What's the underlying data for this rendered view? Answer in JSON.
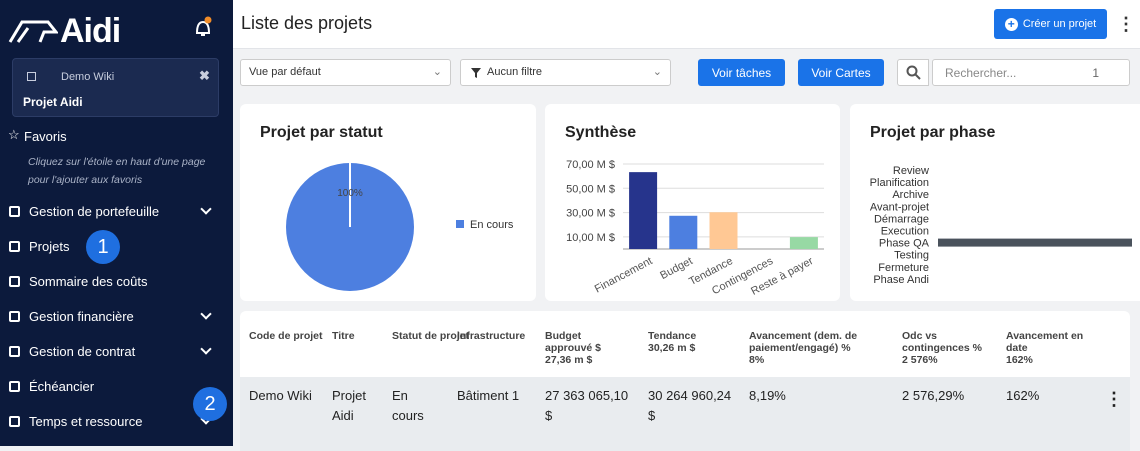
{
  "sidebar": {
    "logo": "Aidi",
    "project_card": {
      "workspace": "Demo Wiki",
      "project": "Projet Aidi"
    },
    "favorites": {
      "title": "Favoris",
      "hint": "Cliquez sur l'étoile en haut d'une page pour l'ajouter aux favoris"
    },
    "menu": [
      "Gestion de portefeuille",
      "Projets",
      "Sommaire des coûts",
      "Gestion financière",
      "Gestion de contrat",
      "Échéancier",
      "Temps et ressource"
    ]
  },
  "callouts": [
    1,
    2
  ],
  "header": {
    "title": "Liste des projets",
    "create_button": "Créer un projet"
  },
  "toolbar": {
    "view_select": "Vue par défaut",
    "filter_select": "Aucun filtre",
    "tasks_button": "Voir tâches",
    "cards_button": "Voir Cartes",
    "search_placeholder": "Rechercher...",
    "search_count": 1
  },
  "chart_data": [
    {
      "type": "pie",
      "title": "Projet par statut",
      "categories": [
        "En cours"
      ],
      "values": [
        100
      ],
      "value_labels": [
        "100%"
      ],
      "colors": [
        "#4d7fe0"
      ]
    },
    {
      "type": "bar",
      "title": "Synthèse",
      "categories": [
        "Financement",
        "Budget",
        "Tendance",
        "Contingences",
        "Reste à payer"
      ],
      "values": [
        63.3,
        27.36,
        30.26,
        0,
        9.8
      ],
      "colors": [
        "#26348c",
        "#4d7fe0",
        "#ffc894",
        "#e07a7a",
        "#97d9a4"
      ],
      "ylim": [
        0,
        70
      ],
      "yticks": [
        {
          "value": 10,
          "label": "10,00 M $"
        },
        {
          "value": 30,
          "label": "30,00 M $"
        },
        {
          "value": 50,
          "label": "50,00 M $"
        },
        {
          "value": 70,
          "label": "70,00 M $"
        }
      ],
      "grid": true
    },
    {
      "type": "hbar",
      "title": "Projet par phase",
      "categories": [
        "Review",
        "Planification",
        "Archive",
        "Avant-projet",
        "Démarrage",
        "Execution",
        "Phase QA",
        "Testing",
        "Fermeture",
        "Phase Andi"
      ],
      "values": [
        0,
        0,
        0,
        0,
        0,
        0,
        1,
        0,
        0,
        0
      ],
      "color": "#4a525c",
      "xlim": [
        0,
        1
      ]
    }
  ],
  "table": {
    "headers": [
      {
        "label": "Code de projet"
      },
      {
        "label": "Titre"
      },
      {
        "label": "Statut de projet"
      },
      {
        "label": "Infrastructure"
      },
      {
        "label": "Budget approuvé $",
        "total": "27,36 m $"
      },
      {
        "label": "Tendance",
        "total": "30,26 m $"
      },
      {
        "label": "Avancement (dem. de paiement/engagé) %",
        "total": "8%"
      },
      {
        "label": "Odc vs contingences %",
        "total": "2 576%"
      },
      {
        "label": "Avancement en date",
        "total": "162%"
      }
    ],
    "rows": [
      [
        "Demo Wiki",
        "Projet Aidi",
        "En cours",
        "Bâtiment 1",
        "27 363 065,10 $",
        "30 264 960,24 $",
        "8,19%",
        "2 576,29%",
        "162%"
      ]
    ]
  }
}
